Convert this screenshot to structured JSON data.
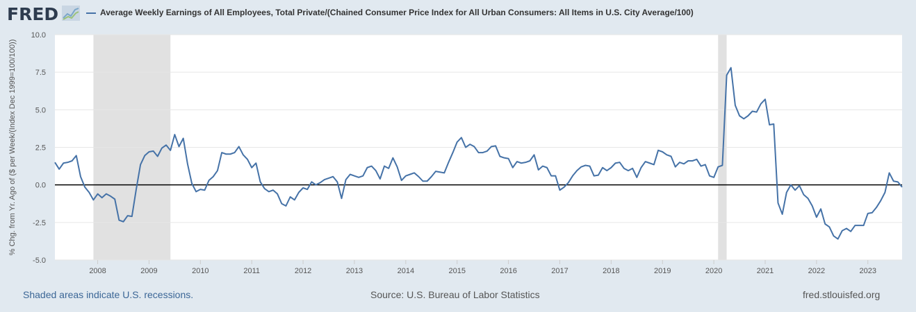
{
  "header": {
    "logo_text": "FRED",
    "logo_icon": "trend-chart-icon",
    "series_title": "Average Weekly Earnings of All Employees, Total Private/(Chained Consumer Price Index for All Urban Consumers: All Items in U.S. City Average/100)"
  },
  "footer": {
    "recession_note": "Shaded areas indicate U.S. recessions.",
    "source": "Source: U.S. Bureau of Labor Statistics",
    "site": "fred.stlouisfed.org"
  },
  "colors": {
    "page_background": "#e1e9f0",
    "plot_background": "#ffffff",
    "series_line": "#4572a7",
    "recession_shade": "#e1e1e1",
    "zero_line": "#000000"
  },
  "chart_data": {
    "type": "line",
    "title": "Average Weekly Earnings of All Employees, Total Private/(Chained Consumer Price Index for All Urban Consumers: All Items in U.S. City Average/100)",
    "ylabel": "% Chg. from Yr. Ago of ($ per Week/(Index Dec 1999=100/100))",
    "xlabel": "",
    "ylim": [
      -5.0,
      10.0
    ],
    "yticks": [
      "10.0",
      "7.5",
      "5.0",
      "2.5",
      "0.0",
      "-2.5",
      "-5.0"
    ],
    "xticks": [
      "2008",
      "2009",
      "2010",
      "2011",
      "2012",
      "2013",
      "2014",
      "2015",
      "2016",
      "2017",
      "2018",
      "2019",
      "2020",
      "2021",
      "2022",
      "2023"
    ],
    "x_range": [
      "2007-03",
      "2023-09"
    ],
    "grid": true,
    "recessions": [
      {
        "start": "2007-12",
        "end": "2009-06"
      },
      {
        "start": "2020-02",
        "end": "2020-04"
      }
    ],
    "reference_line_y": 0,
    "series": [
      {
        "name": "Average Weekly Earnings of All Employees, Total Private/(Chained Consumer Price Index for All Urban Consumers: All Items in U.S. City Average/100)",
        "start": "2007-03",
        "frequency": "monthly",
        "values": [
          1.5,
          1.05,
          1.45,
          1.5,
          1.6,
          1.95,
          0.55,
          -0.15,
          -0.5,
          -1.0,
          -0.6,
          -0.85,
          -0.6,
          -0.75,
          -0.95,
          -2.35,
          -2.45,
          -2.05,
          -2.1,
          -0.3,
          1.35,
          1.95,
          2.2,
          2.25,
          1.9,
          2.45,
          2.65,
          2.3,
          3.35,
          2.55,
          3.1,
          1.4,
          0.1,
          -0.45,
          -0.3,
          -0.35,
          0.3,
          0.55,
          0.95,
          2.15,
          2.05,
          2.05,
          2.15,
          2.55,
          2.0,
          1.7,
          1.15,
          1.45,
          0.2,
          -0.25,
          -0.45,
          -0.35,
          -0.6,
          -1.25,
          -1.4,
          -0.8,
          -1.0,
          -0.5,
          -0.2,
          -0.3,
          0.2,
          0.0,
          0.15,
          0.35,
          0.45,
          0.55,
          0.2,
          -0.9,
          0.35,
          0.7,
          0.6,
          0.5,
          0.6,
          1.15,
          1.25,
          0.95,
          0.4,
          1.25,
          1.1,
          1.8,
          1.2,
          0.3,
          0.6,
          0.7,
          0.8,
          0.55,
          0.25,
          0.25,
          0.55,
          0.9,
          0.85,
          0.8,
          1.5,
          2.15,
          2.85,
          3.15,
          2.5,
          2.7,
          2.55,
          2.15,
          2.15,
          2.25,
          2.55,
          2.6,
          1.9,
          1.8,
          1.75,
          1.15,
          1.55,
          1.45,
          1.5,
          1.6,
          2.0,
          1.0,
          1.25,
          1.15,
          0.6,
          0.6,
          -0.35,
          -0.15,
          0.15,
          0.6,
          0.95,
          1.2,
          1.3,
          1.25,
          0.6,
          0.65,
          1.15,
          0.95,
          1.15,
          1.45,
          1.5,
          1.1,
          0.95,
          1.1,
          0.5,
          1.15,
          1.55,
          1.45,
          1.35,
          2.3,
          2.2,
          2.0,
          1.9,
          1.2,
          1.5,
          1.4,
          1.6,
          1.6,
          1.7,
          1.25,
          1.35,
          0.6,
          0.5,
          1.2,
          1.3,
          7.3,
          7.8,
          5.3,
          4.6,
          4.4,
          4.6,
          4.9,
          4.85,
          5.4,
          5.7,
          4.0,
          4.05,
          -1.2,
          -1.95,
          -0.5,
          0.0,
          -0.35,
          -0.05,
          -0.65,
          -0.9,
          -1.4,
          -2.15,
          -1.6,
          -2.6,
          -2.8,
          -3.4,
          -3.6,
          -3.05,
          -2.9,
          -3.1,
          -2.7,
          -2.7,
          -2.7,
          -1.9,
          -1.85,
          -1.5,
          -1.05,
          -0.5,
          0.8,
          0.25,
          0.2,
          -0.15
        ]
      }
    ]
  }
}
